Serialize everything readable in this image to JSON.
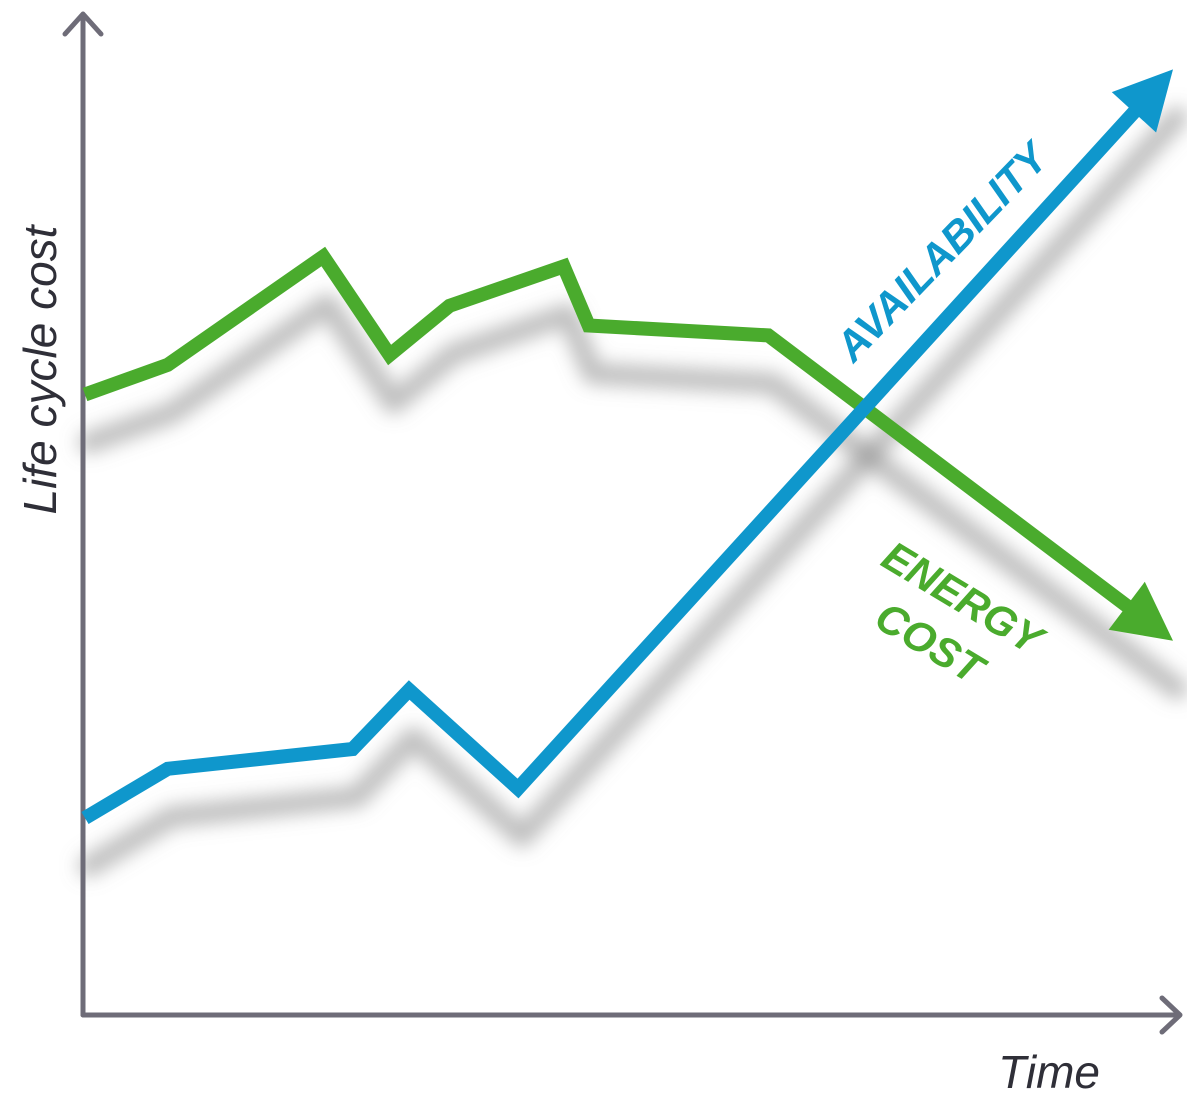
{
  "chart_data": {
    "type": "line",
    "xlabel": "Time",
    "ylabel": "Life cycle cost",
    "grid": false,
    "legend": "none",
    "axis_color": "#6e6c78",
    "shadow_color": "#8a8a8a",
    "xlim": [
      0,
      100
    ],
    "ylim": [
      0,
      100
    ],
    "series": [
      {
        "name": "ENERGY COST",
        "label_lines": [
          "ENERGY",
          "COST"
        ],
        "color": "#4aab2d",
        "x": [
          0,
          7.6,
          21.9,
          28.0,
          33.5,
          44.0,
          46.3,
          62.8,
          100
        ],
        "y": [
          63,
          66,
          77,
          67,
          72,
          76,
          70,
          69,
          38
        ]
      },
      {
        "name": "AVAILABILITY",
        "label_lines": [
          "AVAILABILITY"
        ],
        "color": "#0f97cc",
        "x": [
          0,
          7.6,
          24.6,
          29.8,
          39.8,
          100
        ],
        "y": [
          20,
          25,
          27,
          33,
          23,
          96
        ]
      }
    ]
  }
}
